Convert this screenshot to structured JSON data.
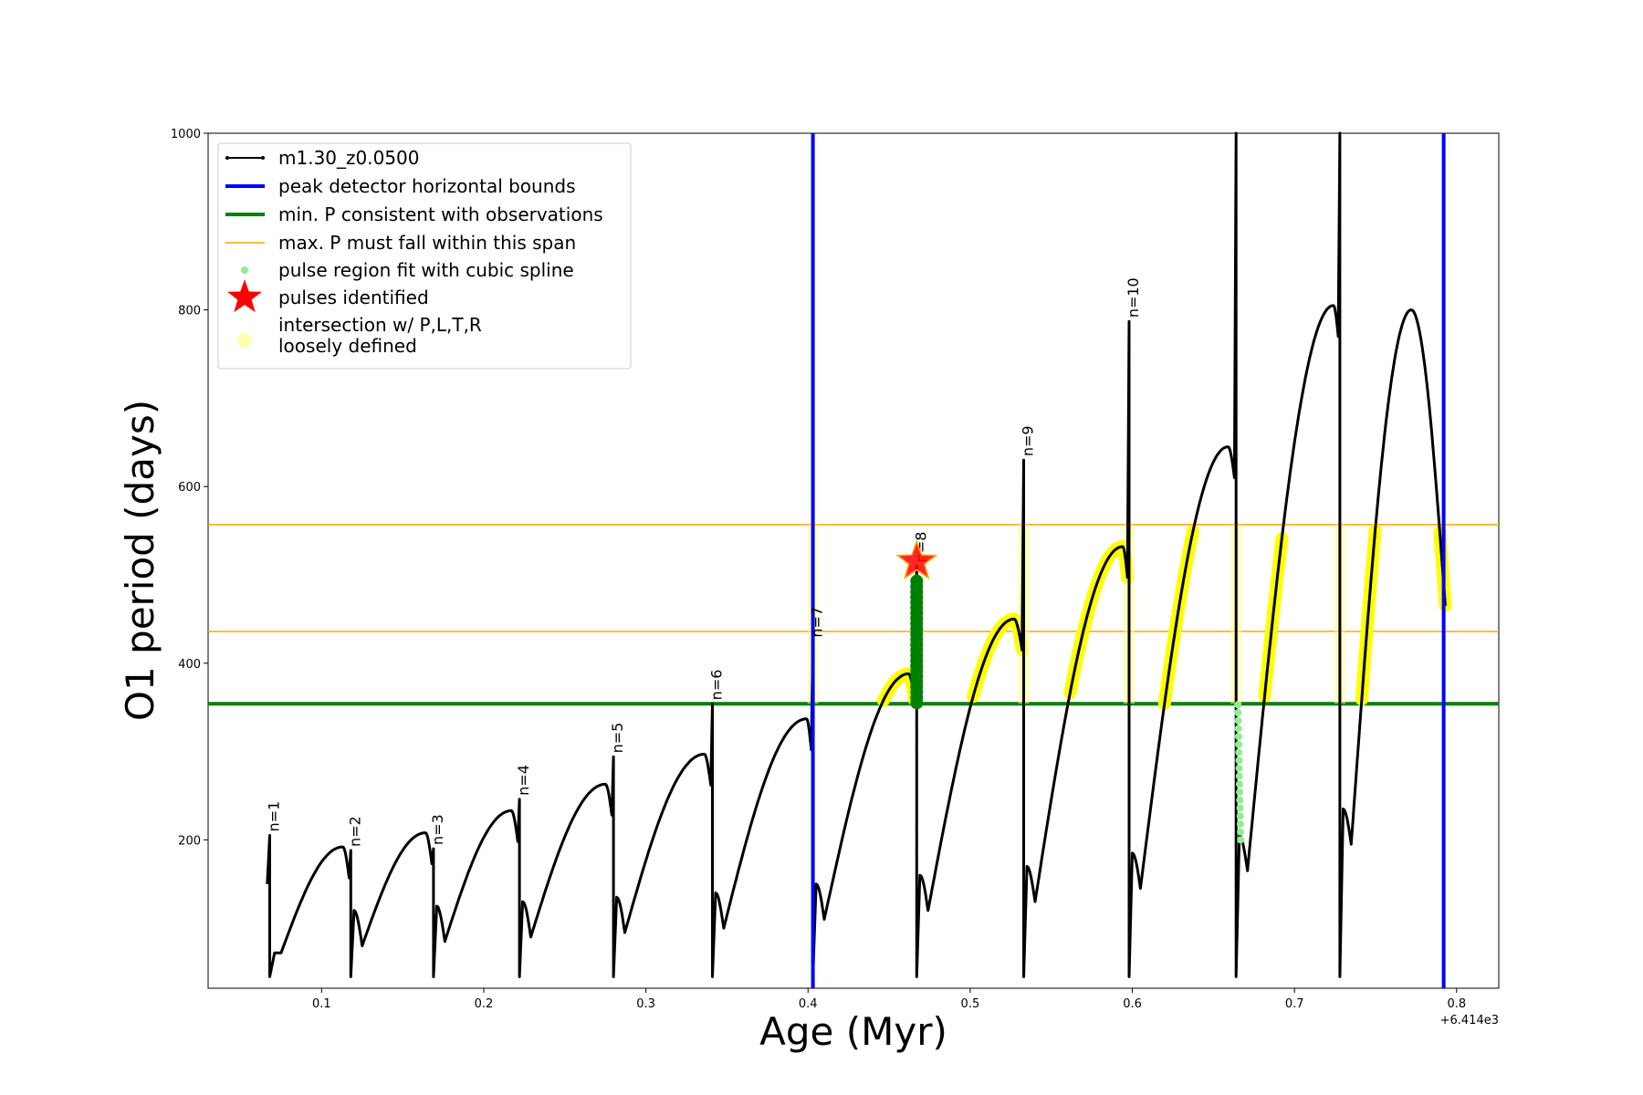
{
  "chart_data": {
    "type": "line",
    "title": "",
    "xlabel": "Age (Myr)",
    "ylabel": "O1 period (days)",
    "x_offset_label": "+6.414e3",
    "xlim": [
      0.03,
      0.826
    ],
    "ylim": [
      32,
      1000
    ],
    "xticks": [
      0.1,
      0.2,
      0.3,
      0.4,
      0.5,
      0.6,
      0.7,
      0.8
    ],
    "yticks": [
      200,
      400,
      600,
      800,
      1000
    ],
    "legend_position": "top-left",
    "legend": [
      {
        "label": "m1.30_z0.0500",
        "kind": "line-marker",
        "color": "#000000"
      },
      {
        "label": "peak detector horizontal bounds",
        "kind": "line-thick",
        "color": "#0000ff"
      },
      {
        "label": "min. P consistent with observations",
        "kind": "line-thick",
        "color": "#008000"
      },
      {
        "label": "max. P must fall within this span",
        "kind": "line-thin",
        "color": "#ffa500"
      },
      {
        "label": "pulse region fit with cubic spline",
        "kind": "dot",
        "color": "#90ee90"
      },
      {
        "label": "pulses identified",
        "kind": "star",
        "color": "#ff0000"
      },
      {
        "label": "intersection w/ P,L,T,R",
        "label2": "loosely defined",
        "kind": "soft-dot",
        "color": "#ffffb0"
      }
    ],
    "vertical_bounds": [
      0.403,
      0.792
    ],
    "min_period": 354,
    "max_period_span": [
      436,
      557
    ],
    "pulses": [
      {
        "label": "n=1",
        "x": 0.068,
        "spike": 205,
        "dip": 72,
        "before_peak": null,
        "peak_x": null
      },
      {
        "label": "n=2",
        "x": 0.118,
        "spike": 188,
        "dip": 80,
        "before_peak": 192,
        "peak_x": 0.113
      },
      {
        "label": "n=3",
        "x": 0.169,
        "spike": 190,
        "dip": 85,
        "before_peak": 208,
        "peak_x": 0.164
      },
      {
        "label": "n=4",
        "x": 0.222,
        "spike": 246,
        "dip": 90,
        "before_peak": 233,
        "peak_x": 0.217
      },
      {
        "label": "n=5",
        "x": 0.28,
        "spike": 294,
        "dip": 95,
        "before_peak": 263,
        "peak_x": 0.275
      },
      {
        "label": "n=6",
        "x": 0.341,
        "spike": 354,
        "dip": 100,
        "before_peak": 297,
        "peak_x": 0.336
      },
      {
        "label": "n=7",
        "x": 0.403,
        "spike": 425,
        "dip": 110,
        "before_peak": 337,
        "peak_x": 0.399
      },
      {
        "label": "n=8",
        "x": 0.467,
        "spike": 510,
        "dip": 120,
        "before_peak": 388,
        "peak_x": 0.462
      },
      {
        "label": "n=9",
        "x": 0.533,
        "spike": 630,
        "dip": 130,
        "before_peak": 450,
        "peak_x": 0.527
      },
      {
        "label": "n=10",
        "x": 0.598,
        "spike": 787,
        "dip": 145,
        "before_peak": 532,
        "peak_x": 0.594
      },
      {
        "label": "",
        "x": 0.664,
        "spike": 1000,
        "dip": 165,
        "before_peak": 645,
        "peak_x": 0.659
      },
      {
        "label": "",
        "x": 0.728,
        "spike": 1000,
        "dip": 195,
        "before_peak": 805,
        "peak_x": 0.724
      },
      {
        "label": "",
        "x": 0.793,
        "spike": null,
        "dip": null,
        "before_peak": 800,
        "peak_x": 0.772,
        "end_y": 465
      }
    ],
    "pulse_identified": {
      "x": 0.467,
      "y": 515
    }
  }
}
